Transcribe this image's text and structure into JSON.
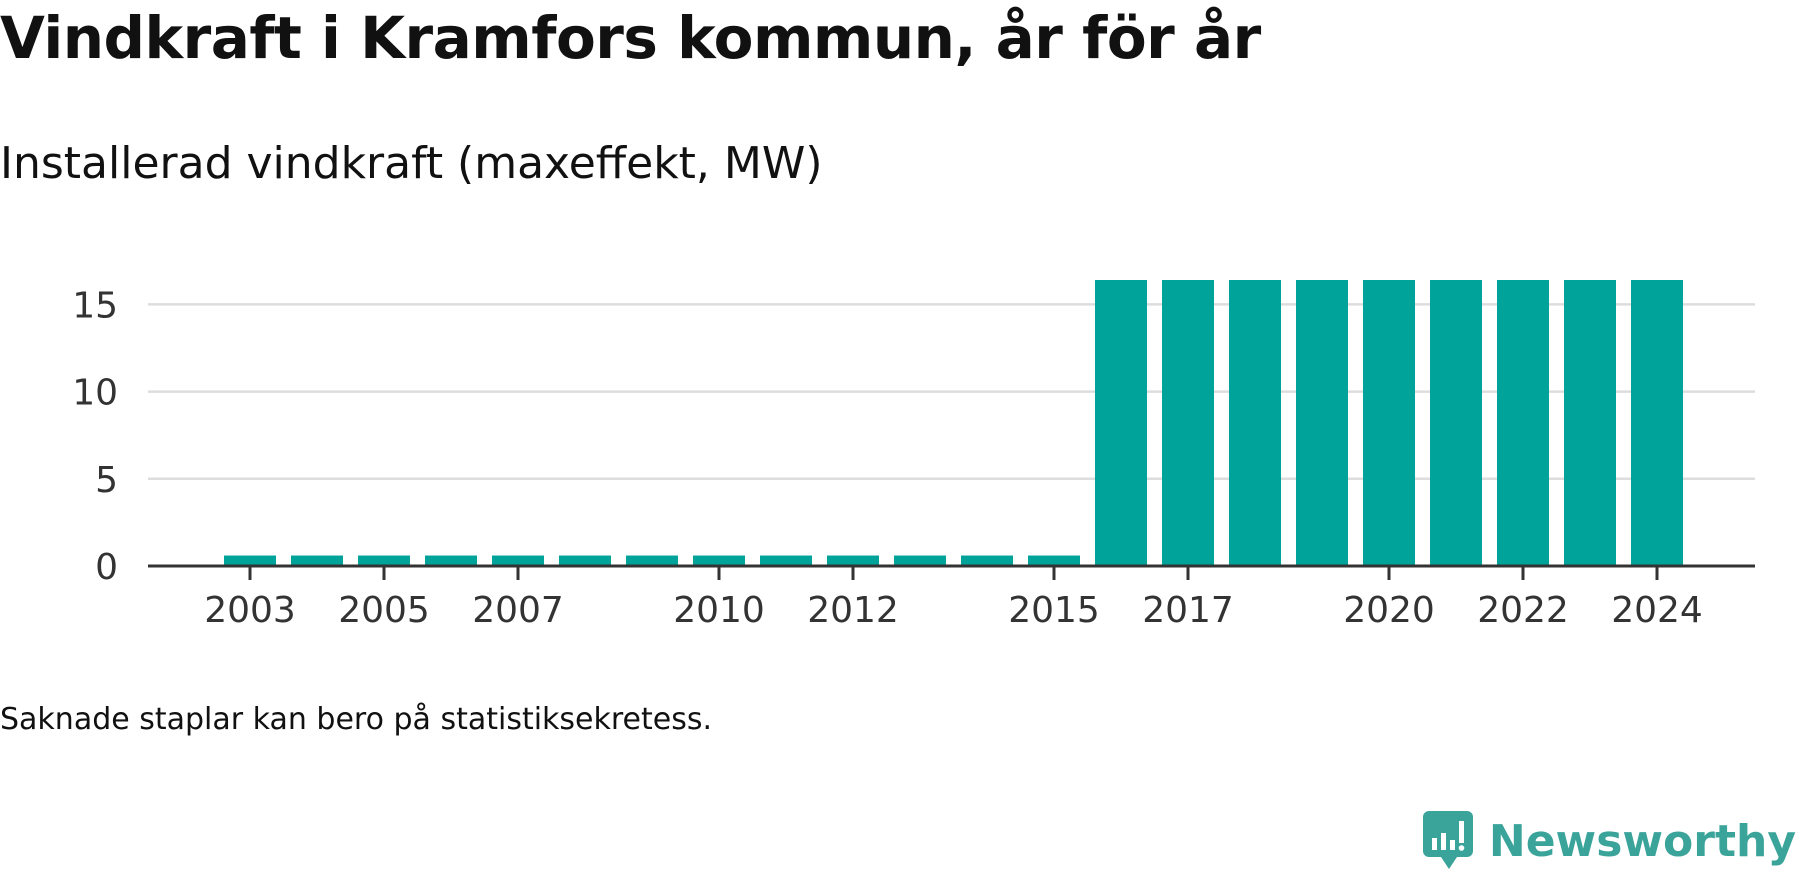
{
  "title": "Vindkraft i Kramfors kommun, år för år",
  "subtitle": "Installerad vindkraft (maxeffekt, MW)",
  "note": "Saknade staplar kan bero på statistiksekretess.",
  "brand": {
    "name": "Newsworthy",
    "icon": "newsworthy-logo-icon",
    "color": "#3aa39a"
  },
  "colors": {
    "bar": "#00a39a",
    "axis": "#333333",
    "grid": "#dddddd"
  },
  "chart_data": {
    "type": "bar",
    "categories": [
      "2003",
      "2004",
      "2005",
      "2006",
      "2007",
      "2008",
      "2009",
      "2010",
      "2011",
      "2012",
      "2013",
      "2014",
      "2015",
      "2016",
      "2017",
      "2018",
      "2019",
      "2020",
      "2021",
      "2022",
      "2023",
      "2024"
    ],
    "values": [
      0.6,
      0.6,
      0.6,
      0.6,
      0.6,
      0.6,
      0.6,
      0.6,
      0.6,
      0.6,
      0.6,
      0.6,
      0.6,
      16.4,
      16.4,
      16.4,
      16.4,
      16.4,
      16.4,
      16.4,
      16.4,
      16.4
    ],
    "x_tick_labels": [
      "2003",
      "2005",
      "2007",
      "2010",
      "2012",
      "2015",
      "2017",
      "2020",
      "2022",
      "2024"
    ],
    "y_ticks": [
      0,
      5,
      10,
      15
    ],
    "ylim": [
      0,
      16.4
    ],
    "title": "Vindkraft i Kramfors kommun, år för år",
    "subtitle": "Installerad vindkraft (maxeffekt, MW)",
    "grid": true,
    "legend": "none"
  }
}
